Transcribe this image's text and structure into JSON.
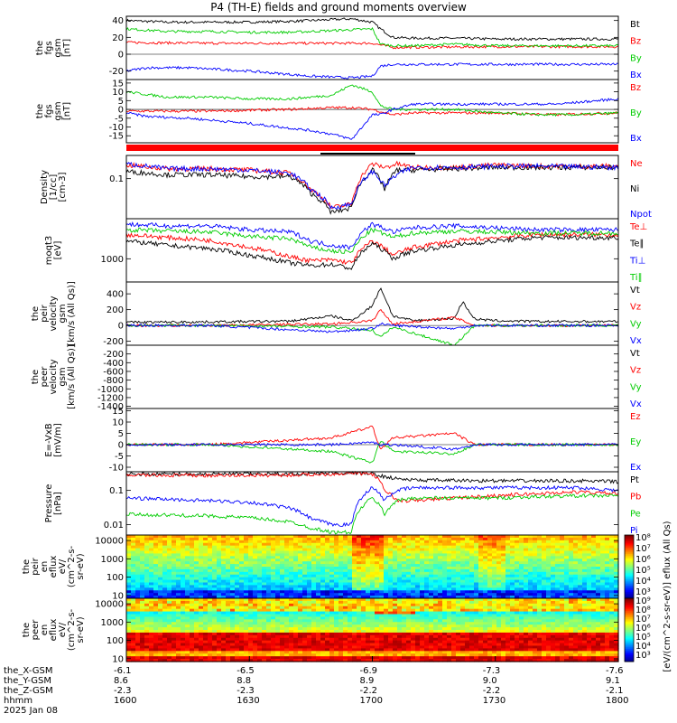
{
  "title": "P4 (TH-E) fields and ground moments overview",
  "chart_data": [
    {
      "type": "line",
      "id": "fgs_gsm",
      "ylabel": [
        "the",
        "fgs",
        "gsm",
        "[nT]"
      ],
      "ylim": [
        -30,
        45
      ],
      "yticks": [
        -20,
        0,
        20,
        40
      ],
      "series": [
        {
          "name": "Bt",
          "color": "#000000",
          "x": [
            1600,
            1610,
            1620,
            1630,
            1640,
            1650,
            1655,
            1700,
            1702,
            1705,
            1710,
            1720,
            1730,
            1740,
            1750,
            1800
          ],
          "values": [
            40,
            38,
            38,
            38,
            39,
            41,
            42,
            38,
            30,
            20,
            19,
            19,
            18,
            18,
            18,
            18
          ]
        },
        {
          "name": "Bz",
          "color": "#ff0000",
          "x": [
            1600,
            1620,
            1640,
            1700,
            1705,
            1730,
            1800
          ],
          "values": [
            14,
            13,
            13,
            13,
            8,
            9,
            9
          ]
        },
        {
          "name": "By",
          "color": "#00cc00",
          "x": [
            1600,
            1610,
            1620,
            1630,
            1640,
            1650,
            1700,
            1702,
            1705,
            1710,
            1720,
            1730,
            1740,
            1750,
            1800
          ],
          "values": [
            30,
            27,
            27,
            26,
            26,
            28,
            30,
            12,
            10,
            10,
            12,
            10,
            10,
            10,
            10
          ]
        },
        {
          "name": "Bx",
          "color": "#0000ff",
          "x": [
            1600,
            1605,
            1615,
            1630,
            1645,
            1650,
            1655,
            1700,
            1702,
            1705,
            1710,
            1720,
            1730,
            1745,
            1800
          ],
          "values": [
            -20,
            -16,
            -16,
            -20,
            -26,
            -27,
            -28,
            -26,
            -14,
            -12,
            -12,
            -12,
            -12,
            -12,
            -12
          ]
        }
      ]
    },
    {
      "type": "line",
      "id": "fgs_gsm_zoom",
      "ylabel": [
        "the",
        "fgs",
        "gsm",
        "[nT]"
      ],
      "ylim": [
        -19,
        17
      ],
      "yticks": [
        -15,
        -10,
        -5,
        0,
        5,
        10,
        15
      ],
      "series": [
        {
          "name": "Bz",
          "color": "#ff0000",
          "x": [
            1600,
            1620,
            1640,
            1650,
            1655,
            1700,
            1705,
            1710,
            1720,
            1730,
            1745,
            1800
          ],
          "values": [
            -1,
            -1,
            0,
            1,
            1,
            0,
            -3,
            -2,
            -2,
            -2,
            -3,
            -2
          ]
        },
        {
          "name": "By",
          "color": "#00cc00",
          "x": [
            1600,
            1610,
            1620,
            1630,
            1640,
            1650,
            1655,
            1700,
            1702,
            1705,
            1710,
            1720,
            1730,
            1740,
            1750,
            1800
          ],
          "values": [
            10,
            7,
            7,
            6,
            6,
            8,
            14,
            10,
            2,
            0,
            0,
            0,
            -2,
            -3,
            -3,
            -2
          ]
        },
        {
          "name": "Bx",
          "color": "#0000ff",
          "x": [
            1600,
            1605,
            1615,
            1630,
            1645,
            1650,
            1655,
            1700,
            1702,
            1705,
            1710,
            1720,
            1730,
            1745,
            1760,
            1800
          ],
          "values": [
            -2,
            -4,
            -5,
            -8,
            -12,
            -14,
            -17,
            -3,
            -3,
            0,
            3,
            3,
            3,
            3,
            6,
            4
          ]
        }
      ]
    },
    {
      "type": "line",
      "id": "density",
      "ylabel": [
        "Density",
        "[1/cc]",
        "[cm-3]"
      ],
      "ylim": [
        0.015,
        0.3
      ],
      "log": true,
      "yticks": [
        0.1
      ],
      "series": [
        {
          "name": "Ne",
          "color": "#ff0000",
          "x": [
            1600,
            1610,
            1620,
            1630,
            1640,
            1645,
            1650,
            1655,
            1700,
            1703,
            1706,
            1710,
            1720,
            1730,
            1740,
            1800
          ],
          "values": [
            0.19,
            0.16,
            0.16,
            0.15,
            0.13,
            0.06,
            0.025,
            0.03,
            0.2,
            0.17,
            0.2,
            0.17,
            0.17,
            0.19,
            0.18,
            0.18
          ]
        },
        {
          "name": "Ni",
          "color": "#000000",
          "x": [
            1600,
            1610,
            1620,
            1630,
            1640,
            1645,
            1650,
            1655,
            1700,
            1703,
            1706,
            1710,
            1720,
            1730,
            1740,
            1800
          ],
          "values": [
            0.14,
            0.12,
            0.12,
            0.11,
            0.11,
            0.05,
            0.02,
            0.025,
            0.15,
            0.06,
            0.15,
            0.15,
            0.16,
            0.17,
            0.17,
            0.17
          ]
        },
        {
          "name": "Npot",
          "color": "#0000ff",
          "x": [
            1600,
            1610,
            1620,
            1630,
            1640,
            1645,
            1650,
            1655,
            1700,
            1703,
            1706,
            1710,
            1720,
            1730,
            1740,
            1800
          ],
          "values": [
            0.2,
            0.16,
            0.16,
            0.15,
            0.13,
            0.06,
            0.025,
            0.03,
            0.14,
            0.07,
            0.12,
            0.17,
            0.17,
            0.18,
            0.18,
            0.17
          ]
        }
      ]
    },
    {
      "type": "line",
      "id": "temperature",
      "ylabel": [
        "moqt3",
        "[eV]"
      ],
      "ylim": [
        300,
        8000
      ],
      "log": true,
      "yticks": [
        1000
      ],
      "series": [
        {
          "name": "Te⊥",
          "color": "#ff0000",
          "x": [
            1600,
            1610,
            1620,
            1630,
            1640,
            1645,
            1650,
            1655,
            1700,
            1705,
            1710,
            1720,
            1730,
            1740,
            1800
          ],
          "values": [
            3500,
            3000,
            2600,
            1800,
            1100,
            900,
            950,
            800,
            2500,
            1200,
            1800,
            2500,
            3000,
            3500,
            3500
          ]
        },
        {
          "name": "Te∥",
          "color": "#000000",
          "x": [
            1600,
            1610,
            1620,
            1630,
            1640,
            1645,
            1650,
            1655,
            1700,
            1705,
            1710,
            1720,
            1730,
            1740,
            1800
          ],
          "values": [
            2500,
            2000,
            1700,
            1200,
            800,
            700,
            750,
            600,
            2200,
            1000,
            1500,
            2000,
            2500,
            3000,
            3000
          ]
        },
        {
          "name": "Ti⊥",
          "color": "#0000ff",
          "x": [
            1600,
            1610,
            1620,
            1630,
            1640,
            1645,
            1650,
            1655,
            1700,
            1705,
            1710,
            1720,
            1730,
            1740,
            1800
          ],
          "values": [
            6000,
            5500,
            5500,
            4500,
            4000,
            2500,
            2000,
            1800,
            6000,
            4000,
            5000,
            5500,
            5000,
            4500,
            4500
          ]
        },
        {
          "name": "Ti∥",
          "color": "#00cc00",
          "x": [
            1600,
            1610,
            1620,
            1630,
            1640,
            1645,
            1650,
            1655,
            1700,
            1705,
            1710,
            1720,
            1730,
            1740,
            1800
          ],
          "values": [
            4500,
            4200,
            4000,
            3200,
            2800,
            1800,
            1500,
            1400,
            4500,
            3000,
            3800,
            4200,
            4000,
            3800,
            3800
          ]
        }
      ]
    },
    {
      "type": "line",
      "id": "peir_velocity",
      "ylabel": [
        "the",
        "peir",
        "velocity",
        "gsm",
        "[km/s (All Qs)]"
      ],
      "ylim": [
        -250,
        550
      ],
      "yticks": [
        -200,
        0,
        200,
        400
      ],
      "series": [
        {
          "name": "Vt",
          "color": "#000000",
          "x": [
            1600,
            1620,
            1640,
            1650,
            1655,
            1700,
            1702,
            1705,
            1710,
            1720,
            1722,
            1725,
            1730,
            1740,
            1800
          ],
          "values": [
            40,
            45,
            55,
            120,
            60,
            250,
            480,
            120,
            60,
            90,
            300,
            80,
            60,
            50,
            50
          ]
        },
        {
          "name": "Vz",
          "color": "#ff0000",
          "x": [
            1600,
            1620,
            1650,
            1700,
            1702,
            1705,
            1720,
            1725,
            1740,
            1800
          ],
          "values": [
            0,
            0,
            20,
            60,
            200,
            20,
            100,
            0,
            0,
            0
          ]
        },
        {
          "name": "Vy",
          "color": "#00cc00",
          "x": [
            1600,
            1620,
            1650,
            1700,
            1702,
            1705,
            1720,
            1725,
            1740,
            1800
          ],
          "values": [
            0,
            0,
            -20,
            -60,
            -150,
            -20,
            -250,
            0,
            0,
            0
          ]
        },
        {
          "name": "Vx",
          "color": "#0000ff",
          "x": [
            1600,
            1620,
            1650,
            1700,
            1702,
            1705,
            1720,
            1725,
            1740,
            1800
          ],
          "values": [
            0,
            0,
            -80,
            -40,
            20,
            0,
            -40,
            0,
            0,
            0
          ]
        }
      ]
    },
    {
      "type": "line",
      "id": "peer_velocity",
      "ylabel": [
        "the",
        "peer",
        "velocity",
        "gsm",
        "[km/s (All Qs)]"
      ],
      "ylim": [
        -1450,
        0
      ],
      "yticks": [
        -1400,
        -1200,
        -1000,
        -800,
        -600,
        -400,
        -200
      ],
      "series": [
        {
          "name": "Vt",
          "color": "#000000",
          "x": [],
          "values": []
        },
        {
          "name": "Vz",
          "color": "#ff0000",
          "x": [],
          "values": []
        },
        {
          "name": "Vy",
          "color": "#00cc00",
          "x": [],
          "values": []
        },
        {
          "name": "Vx",
          "color": "#0000ff",
          "x": [],
          "values": []
        }
      ]
    },
    {
      "type": "line",
      "id": "efield",
      "ylabel": [
        "E=-VxB",
        "[mV/m]"
      ],
      "ylim": [
        -12,
        16
      ],
      "yticks": [
        -10,
        -5,
        0,
        5,
        10,
        15
      ],
      "series": [
        {
          "name": "Ez",
          "color": "#ff0000",
          "x": [
            1600,
            1620,
            1640,
            1650,
            1700,
            1702,
            1705,
            1720,
            1725,
            1740,
            1800
          ],
          "values": [
            0,
            0,
            2,
            3,
            8,
            -2,
            3,
            5,
            0,
            0,
            0
          ]
        },
        {
          "name": "Ey",
          "color": "#00cc00",
          "x": [
            1600,
            1620,
            1640,
            1650,
            1700,
            1702,
            1705,
            1720,
            1725,
            1740,
            1800
          ],
          "values": [
            0,
            0,
            -2,
            -3,
            -8,
            2,
            -3,
            -4,
            0,
            0,
            0
          ]
        },
        {
          "name": "Ex",
          "color": "#0000ff",
          "x": [
            1600,
            1620,
            1640,
            1650,
            1700,
            1702,
            1705,
            1720,
            1725,
            1740,
            1800
          ],
          "values": [
            0,
            0,
            0,
            0,
            1,
            0,
            0,
            -2,
            0,
            0,
            0
          ]
        }
      ]
    },
    {
      "type": "line",
      "id": "pressure",
      "ylabel": [
        "Pressure",
        "[nPa]"
      ],
      "ylim": [
        0.005,
        0.35
      ],
      "log": true,
      "yticks": [
        0.01,
        0.1
      ],
      "series": [
        {
          "name": "Pt",
          "color": "#000000",
          "x": [
            1600,
            1620,
            1640,
            1650,
            1655,
            1700,
            1703,
            1706,
            1710,
            1730,
            1750,
            1800
          ],
          "values": [
            0.3,
            0.3,
            0.3,
            0.32,
            0.33,
            0.3,
            0.25,
            0.22,
            0.2,
            0.19,
            0.19,
            0.18
          ]
        },
        {
          "name": "Pb",
          "color": "#ff0000",
          "x": [
            1600,
            1620,
            1640,
            1650,
            1655,
            1700,
            1703,
            1706,
            1710,
            1730,
            1750,
            1800
          ],
          "values": [
            0.28,
            0.27,
            0.28,
            0.3,
            0.32,
            0.3,
            0.1,
            0.05,
            0.05,
            0.07,
            0.09,
            0.08
          ]
        },
        {
          "name": "Pe",
          "color": "#00cc00",
          "x": [
            1600,
            1620,
            1630,
            1640,
            1645,
            1650,
            1655,
            1700,
            1703,
            1706,
            1710,
            1730,
            1750,
            1800
          ],
          "values": [
            0.02,
            0.018,
            0.016,
            0.012,
            0.008,
            0.006,
            0.006,
            0.06,
            0.02,
            0.05,
            0.06,
            0.06,
            0.07,
            0.07
          ]
        },
        {
          "name": "Pi",
          "color": "#0000ff",
          "x": [
            1600,
            1620,
            1630,
            1640,
            1645,
            1650,
            1655,
            1700,
            1703,
            1706,
            1710,
            1730,
            1750,
            1800
          ],
          "values": [
            0.06,
            0.05,
            0.045,
            0.03,
            0.015,
            0.01,
            0.01,
            0.12,
            0.05,
            0.1,
            0.12,
            0.12,
            0.12,
            0.1
          ]
        }
      ]
    },
    {
      "type": "heatmap",
      "id": "peir_en_eflux",
      "ylabel": [
        "the",
        "peir",
        "en",
        "eflux",
        "eV/",
        "(cm^2-s-",
        "sr-eV)"
      ],
      "ylim": [
        7,
        20000
      ],
      "log": true,
      "yticks": [
        10,
        100,
        1000,
        10000
      ],
      "colorbar_label": "[eV/(cm^2-s-sr-eV)]"
    },
    {
      "type": "heatmap",
      "id": "peer_en_eflux",
      "ylabel": [
        "the",
        "peer",
        "en",
        "eflux",
        "eV/",
        "(cm^2-s-",
        "sr-eV)"
      ],
      "ylim": [
        7,
        20000
      ],
      "log": true,
      "yticks": [
        10,
        100,
        1000,
        10000
      ],
      "colorbar_label": "[eV/(cm^2-s-sr-eV)]"
    }
  ],
  "colorbar": {
    "upper_ticks": [
      "10⁸",
      "10⁷",
      "10⁶",
      "10⁵",
      "10⁴",
      "10³"
    ],
    "lower_ticks": [
      "10⁹",
      "10⁸",
      "10⁷",
      "10⁶",
      "10⁵",
      "10⁴",
      "10³"
    ],
    "label": "[eV/(cm^2-s-sr-eV)]",
    "label2": "eflux (All Qs)"
  },
  "xaxis": {
    "rows": [
      {
        "label": "the_X-GSM",
        "values": [
          "-6.1",
          "-6.5",
          "-6.9",
          "-7.3",
          "-7.6"
        ]
      },
      {
        "label": "the_Y-GSM",
        "values": [
          "8.6",
          "8.8",
          "8.9",
          "9.0",
          "9.1"
        ]
      },
      {
        "label": "the_Z-GSM",
        "values": [
          "-2.3",
          "-2.3",
          "-2.2",
          "-2.2",
          "-2.1"
        ]
      },
      {
        "label": "hhmm",
        "values": [
          "1600",
          "1630",
          "1700",
          "1730",
          "1800"
        ]
      }
    ],
    "date": "2025 Jan 08"
  }
}
